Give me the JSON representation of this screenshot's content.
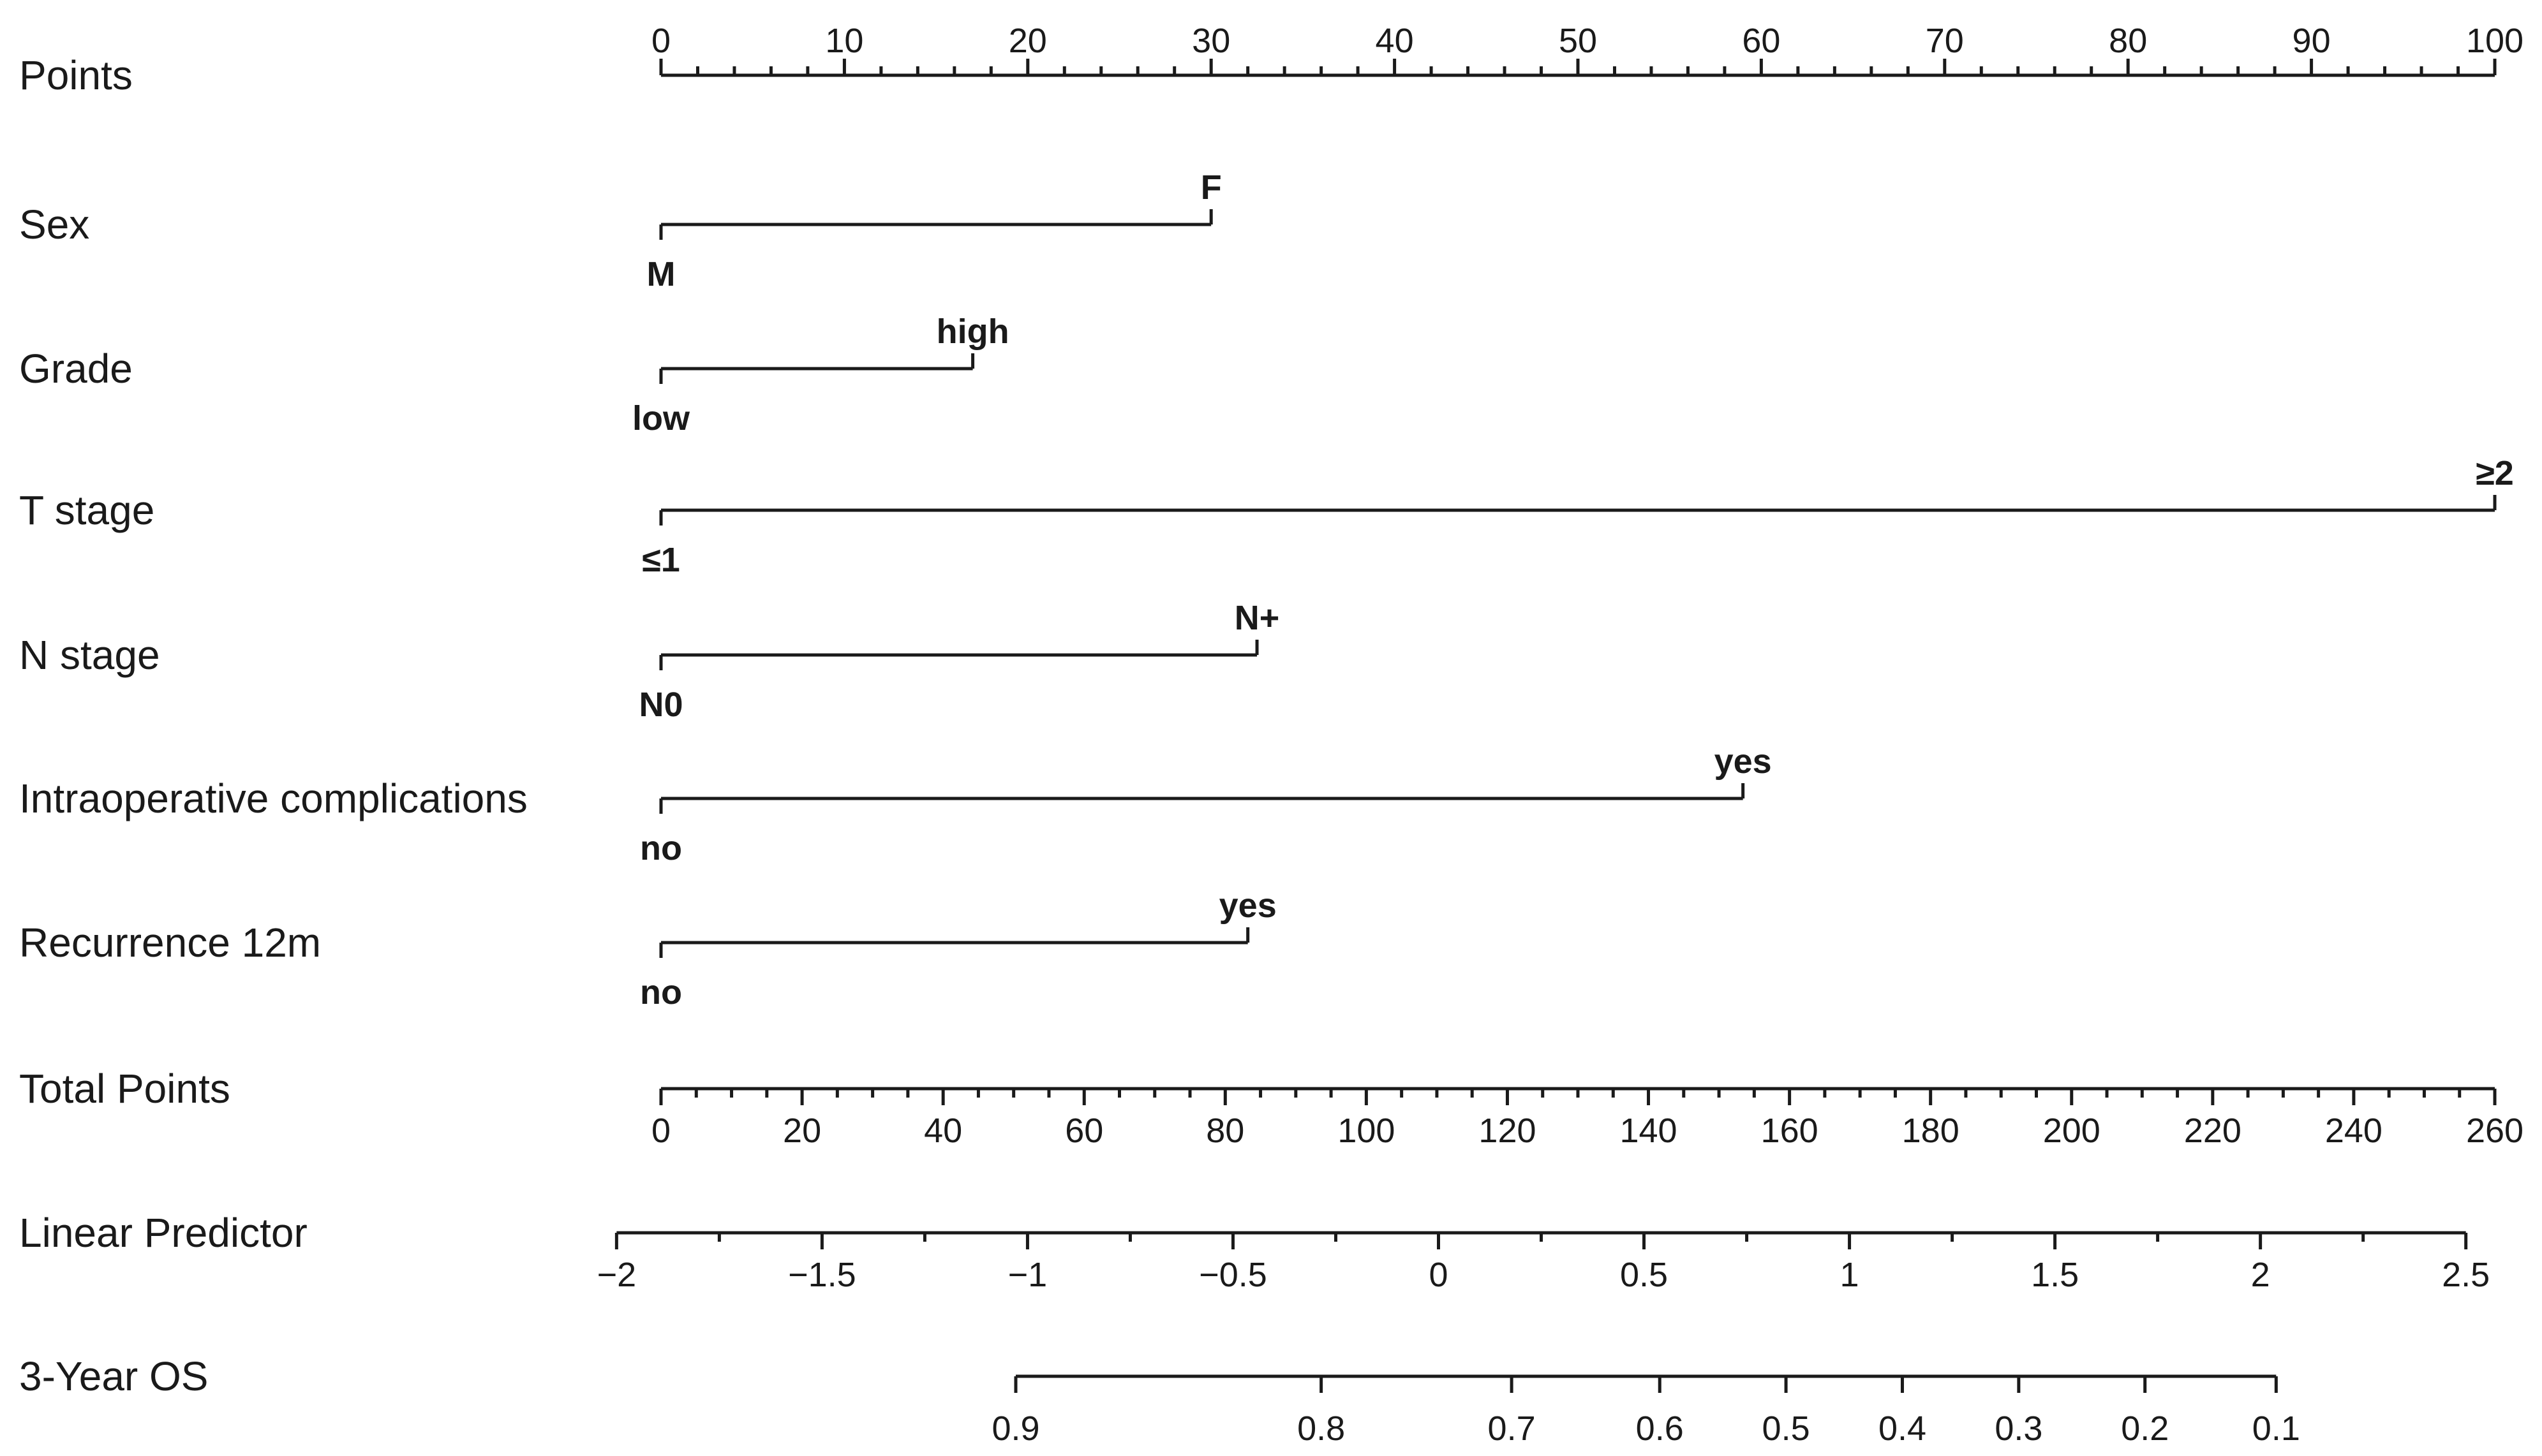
{
  "chart_data": {
    "type": "nomogram",
    "title": "",
    "rows": [
      {
        "kind": "scale",
        "label": "Points",
        "min": 0,
        "max": 100,
        "major_step": 10,
        "minor_step": 2,
        "labels_position": "above",
        "tick_labels": [
          "0",
          "10",
          "20",
          "30",
          "40",
          "50",
          "60",
          "70",
          "80",
          "90",
          "100"
        ]
      },
      {
        "kind": "variable",
        "label": "Sex",
        "levels": [
          {
            "label": "M",
            "points": 0,
            "position": "below"
          },
          {
            "label": "F",
            "points": 30,
            "position": "above"
          }
        ]
      },
      {
        "kind": "variable",
        "label": "Grade",
        "levels": [
          {
            "label": "low",
            "points": 0,
            "position": "below"
          },
          {
            "label": "high",
            "points": 17,
            "position": "above"
          }
        ]
      },
      {
        "kind": "variable",
        "label": "T  stage",
        "levels": [
          {
            "label": "≤1",
            "points": 0,
            "position": "below"
          },
          {
            "label": "≥2",
            "points": 100,
            "position": "above"
          }
        ]
      },
      {
        "kind": "variable",
        "label": "N  stage",
        "levels": [
          {
            "label": "N0",
            "points": 0,
            "position": "below"
          },
          {
            "label": "N+",
            "points": 32.5,
            "position": "above"
          }
        ]
      },
      {
        "kind": "variable",
        "label": "Intraoperative  complications",
        "levels": [
          {
            "label": "no",
            "points": 0,
            "position": "below"
          },
          {
            "label": "yes",
            "points": 59,
            "position": "above"
          }
        ]
      },
      {
        "kind": "variable",
        "label": "Recurrence  12m",
        "levels": [
          {
            "label": "no",
            "points": 0,
            "position": "below"
          },
          {
            "label": "yes",
            "points": 32,
            "position": "above"
          }
        ]
      },
      {
        "kind": "scale",
        "label": "Total Points",
        "min": 0,
        "max": 260,
        "major_step": 20,
        "minor_step": 5,
        "labels_position": "below",
        "tick_labels": [
          "0",
          "20",
          "40",
          "60",
          "80",
          "100",
          "120",
          "140",
          "160",
          "180",
          "200",
          "220",
          "240",
          "260"
        ]
      },
      {
        "kind": "scale",
        "label": "Linear Predictor",
        "min": -2,
        "max": 2.5,
        "major_step": 0.5,
        "minor_step": 0.25,
        "total_points_at_min": -6.3,
        "total_points_at_max": 255.9,
        "labels_position": "below",
        "tick_labels": [
          "−2",
          "−1.5",
          "−1",
          "−0.5",
          "0",
          "0.5",
          "1",
          "1.5",
          "2",
          "2.5"
        ]
      },
      {
        "kind": "probability",
        "label": "3-Year OS",
        "labels_position": "below",
        "ticks": [
          {
            "label": "0.9",
            "total_points": 50.3
          },
          {
            "label": "0.8",
            "total_points": 93.6
          },
          {
            "label": "0.7",
            "total_points": 120.6
          },
          {
            "label": "0.6",
            "total_points": 141.6
          },
          {
            "label": "0.5",
            "total_points": 159.5
          },
          {
            "label": "0.4",
            "total_points": 176.0
          },
          {
            "label": "0.3",
            "total_points": 192.5
          },
          {
            "label": "0.2",
            "total_points": 210.4
          },
          {
            "label": "0.1",
            "total_points": 229.0
          }
        ]
      }
    ]
  }
}
